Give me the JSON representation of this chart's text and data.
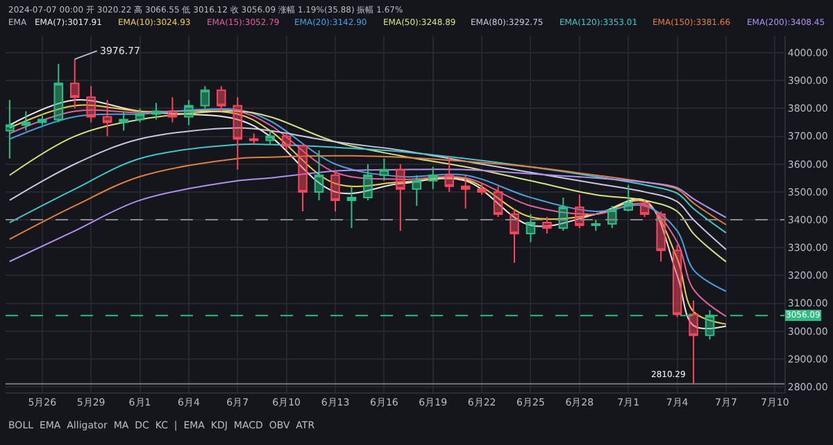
{
  "chart_data": {
    "type": "candlestick",
    "title": "2024-07-07 00:00 开 3020.22 高 3066.55 低 3016.12 收 3056.09 涨幅 1.19%(35.88) 振幅 1.67%",
    "legend_title": "EMA",
    "x": [
      "2024-05-24",
      "2024-05-25",
      "2024-05-26",
      "2024-05-27",
      "2024-05-28",
      "2024-05-29",
      "2024-05-30",
      "2024-05-31",
      "2024-06-01",
      "2024-06-02",
      "2024-06-03",
      "2024-06-04",
      "2024-06-05",
      "2024-06-06",
      "2024-06-07",
      "2024-06-08",
      "2024-06-09",
      "2024-06-10",
      "2024-06-11",
      "2024-06-12",
      "2024-06-13",
      "2024-06-14",
      "2024-06-15",
      "2024-06-16",
      "2024-06-17",
      "2024-06-18",
      "2024-06-19",
      "2024-06-20",
      "2024-06-21",
      "2024-06-22",
      "2024-06-23",
      "2024-06-24",
      "2024-06-25",
      "2024-06-26",
      "2024-06-27",
      "2024-06-28",
      "2024-06-29",
      "2024-06-30",
      "2024-07-01",
      "2024-07-02",
      "2024-07-03",
      "2024-07-04",
      "2024-07-05",
      "2024-07-06"
    ],
    "ohlc": [
      [
        3720,
        3830,
        3620,
        3740
      ],
      [
        3740,
        3790,
        3720,
        3750
      ],
      [
        3750,
        3780,
        3740,
        3760
      ],
      [
        3760,
        3960,
        3750,
        3890
      ],
      [
        3890,
        3976.77,
        3800,
        3840
      ],
      [
        3840,
        3880,
        3750,
        3770
      ],
      [
        3770,
        3830,
        3700,
        3750
      ],
      [
        3750,
        3790,
        3720,
        3760
      ],
      [
        3760,
        3800,
        3750,
        3780
      ],
      [
        3780,
        3820,
        3760,
        3790
      ],
      [
        3790,
        3840,
        3750,
        3770
      ],
      [
        3770,
        3830,
        3740,
        3810
      ],
      [
        3810,
        3880,
        3800,
        3865
      ],
      [
        3865,
        3880,
        3790,
        3810
      ],
      [
        3810,
        3840,
        3580,
        3690
      ],
      [
        3690,
        3710,
        3670,
        3685
      ],
      [
        3685,
        3720,
        3670,
        3700
      ],
      [
        3700,
        3710,
        3650,
        3665
      ],
      [
        3665,
        3670,
        3430,
        3500
      ],
      [
        3500,
        3650,
        3470,
        3560
      ],
      [
        3560,
        3580,
        3430,
        3470
      ],
      [
        3470,
        3520,
        3370,
        3480
      ],
      [
        3480,
        3600,
        3470,
        3560
      ],
      [
        3560,
        3620,
        3540,
        3580
      ],
      [
        3580,
        3600,
        3360,
        3510
      ],
      [
        3510,
        3560,
        3450,
        3540
      ],
      [
        3540,
        3590,
        3510,
        3560
      ],
      [
        3560,
        3630,
        3500,
        3520
      ],
      [
        3520,
        3560,
        3440,
        3510
      ],
      [
        3510,
        3530,
        3490,
        3500
      ],
      [
        3500,
        3520,
        3410,
        3420
      ],
      [
        3420,
        3440,
        3245,
        3350
      ],
      [
        3350,
        3420,
        3320,
        3390
      ],
      [
        3390,
        3410,
        3350,
        3370
      ],
      [
        3370,
        3480,
        3360,
        3445
      ],
      [
        3445,
        3490,
        3370,
        3380
      ],
      [
        3380,
        3400,
        3360,
        3385
      ],
      [
        3385,
        3450,
        3370,
        3435
      ],
      [
        3435,
        3525,
        3430,
        3460
      ],
      [
        3460,
        3470,
        3410,
        3420
      ],
      [
        3420,
        3430,
        3250,
        3290
      ],
      [
        3290,
        3310,
        3050,
        3060
      ],
      [
        3060,
        3110,
        2810.29,
        2985
      ],
      [
        2985,
        3075,
        2970,
        3056.09
      ]
    ],
    "series": [
      {
        "name": "EMA(7):3017.91",
        "type": "line",
        "color": "#e8e8e8",
        "x": [
          "2024-05-24",
          "2024-05-28",
          "2024-06-01",
          "2024-06-07",
          "2024-06-09",
          "2024-06-13",
          "2024-06-17",
          "2024-06-21",
          "2024-06-25",
          "2024-06-29",
          "2024-07-02",
          "2024-07-04",
          "2024-07-05",
          "2024-07-07"
        ],
        "values": [
          3740,
          3830,
          3790,
          3760,
          3700,
          3500,
          3530,
          3540,
          3380,
          3420,
          3470,
          3200,
          3020,
          3018
        ]
      },
      {
        "name": "EMA(10):3024.93",
        "type": "line",
        "color": "#f0d040",
        "x": [
          "2024-05-24",
          "2024-05-28",
          "2024-06-01",
          "2024-06-07",
          "2024-06-09",
          "2024-06-13",
          "2024-06-17",
          "2024-06-21",
          "2024-06-25",
          "2024-06-29",
          "2024-07-02",
          "2024-07-04",
          "2024-07-05",
          "2024-07-07"
        ],
        "values": [
          3730,
          3810,
          3790,
          3780,
          3720,
          3530,
          3535,
          3545,
          3410,
          3420,
          3465,
          3260,
          3070,
          3025
        ]
      },
      {
        "name": "EMA(15):3052.79",
        "type": "line",
        "color": "#e060a0",
        "x": [
          "2024-05-24",
          "2024-05-28",
          "2024-06-01",
          "2024-06-07",
          "2024-06-09",
          "2024-06-13",
          "2024-06-17",
          "2024-06-21",
          "2024-06-25",
          "2024-06-29",
          "2024-07-02",
          "2024-07-04",
          "2024-07-05",
          "2024-07-07"
        ],
        "values": [
          3710,
          3790,
          3785,
          3790,
          3740,
          3570,
          3545,
          3550,
          3450,
          3420,
          3455,
          3320,
          3150,
          3053
        ]
      },
      {
        "name": "EMA(20):3142.90",
        "type": "line",
        "color": "#4aa0e0",
        "x": [
          "2024-05-24",
          "2024-05-28",
          "2024-06-01",
          "2024-06-07",
          "2024-06-09",
          "2024-06-13",
          "2024-06-17",
          "2024-06-21",
          "2024-06-25",
          "2024-06-29",
          "2024-07-02",
          "2024-07-04",
          "2024-07-05",
          "2024-07-07"
        ],
        "values": [
          3690,
          3770,
          3780,
          3795,
          3755,
          3600,
          3555,
          3560,
          3480,
          3430,
          3450,
          3360,
          3220,
          3143
        ]
      },
      {
        "name": "EMA(50):3248.89",
        "type": "line",
        "color": "#d8e080",
        "x": [
          "2024-05-24",
          "2024-05-28",
          "2024-06-01",
          "2024-06-07",
          "2024-06-09",
          "2024-06-13",
          "2024-06-17",
          "2024-06-21",
          "2024-06-25",
          "2024-06-29",
          "2024-07-02",
          "2024-07-04",
          "2024-07-05",
          "2024-07-07"
        ],
        "values": [
          3560,
          3700,
          3760,
          3790,
          3770,
          3680,
          3630,
          3590,
          3540,
          3490,
          3470,
          3430,
          3350,
          3249
        ]
      },
      {
        "name": "EMA(80):3292.75",
        "type": "line",
        "color": "#c8c8e0",
        "x": [
          "2024-05-24",
          "2024-05-28",
          "2024-06-01",
          "2024-06-07",
          "2024-06-09",
          "2024-06-13",
          "2024-06-17",
          "2024-06-21",
          "2024-06-25",
          "2024-06-29",
          "2024-07-02",
          "2024-07-04",
          "2024-07-05",
          "2024-07-07"
        ],
        "values": [
          3470,
          3600,
          3690,
          3730,
          3720,
          3680,
          3650,
          3610,
          3570,
          3530,
          3500,
          3465,
          3400,
          3293
        ]
      },
      {
        "name": "EMA(120):3353.01",
        "type": "line",
        "color": "#40c8d0",
        "x": [
          "2024-05-24",
          "2024-05-28",
          "2024-06-01",
          "2024-06-07",
          "2024-06-09",
          "2024-06-13",
          "2024-06-17",
          "2024-06-21",
          "2024-06-25",
          "2024-06-29",
          "2024-07-02",
          "2024-07-04",
          "2024-07-05",
          "2024-07-07"
        ],
        "values": [
          3390,
          3510,
          3620,
          3670,
          3670,
          3660,
          3645,
          3620,
          3590,
          3555,
          3525,
          3495,
          3440,
          3353
        ]
      },
      {
        "name": "EMA(150):3381.66",
        "type": "line",
        "color": "#e08040",
        "x": [
          "2024-05-24",
          "2024-05-28",
          "2024-06-01",
          "2024-06-07",
          "2024-06-09",
          "2024-06-13",
          "2024-06-17",
          "2024-06-21",
          "2024-06-25",
          "2024-06-29",
          "2024-07-02",
          "2024-07-04",
          "2024-07-05",
          "2024-07-07"
        ],
        "values": [
          3330,
          3450,
          3555,
          3620,
          3625,
          3630,
          3625,
          3610,
          3590,
          3560,
          3535,
          3510,
          3460,
          3382
        ]
      },
      {
        "name": "EMA(200):3408.45",
        "type": "line",
        "color": "#b090f0",
        "x": [
          "2024-05-24",
          "2024-05-28",
          "2024-06-01",
          "2024-06-07",
          "2024-06-09",
          "2024-06-13",
          "2024-06-17",
          "2024-06-21",
          "2024-06-25",
          "2024-06-29",
          "2024-07-02",
          "2024-07-04",
          "2024-07-05",
          "2024-07-07"
        ],
        "values": [
          3250,
          3360,
          3470,
          3540,
          3550,
          3575,
          3580,
          3580,
          3565,
          3550,
          3535,
          3515,
          3475,
          3408
        ]
      }
    ],
    "xlim": [
      "2024-05-23T18:00",
      "2024-07-10T14:00"
    ],
    "xticks": [
      {
        "value": "2024-05-26",
        "label": "5月26"
      },
      {
        "value": "2024-05-29",
        "label": "5月29"
      },
      {
        "value": "2024-06-01",
        "label": "6月1"
      },
      {
        "value": "2024-06-04",
        "label": "6月4"
      },
      {
        "value": "2024-06-07",
        "label": "6月7"
      },
      {
        "value": "2024-06-10",
        "label": "6月10"
      },
      {
        "value": "2024-06-13",
        "label": "6月13"
      },
      {
        "value": "2024-06-16",
        "label": "6月16"
      },
      {
        "value": "2024-06-19",
        "label": "6月19"
      },
      {
        "value": "2024-06-22",
        "label": "6月22"
      },
      {
        "value": "2024-06-25",
        "label": "6月25"
      },
      {
        "value": "2024-06-28",
        "label": "6月28"
      },
      {
        "value": "2024-07-01",
        "label": "7月1"
      },
      {
        "value": "2024-07-04",
        "label": "7月4"
      },
      {
        "value": "2024-07-07",
        "label": "7月7"
      },
      {
        "value": "2024-07-10",
        "label": "7月10"
      }
    ],
    "ylim": [
      2780,
      4060
    ],
    "yticks": [
      {
        "value": 2800,
        "label": "2800.00"
      },
      {
        "value": 2900,
        "label": "2900.00"
      },
      {
        "value": 3000,
        "label": "3000.00"
      },
      {
        "value": 3100,
        "label": "3100.00"
      },
      {
        "value": 3200,
        "label": "3200.00"
      },
      {
        "value": 3300,
        "label": "3300.00"
      },
      {
        "value": 3400,
        "label": "3400.00"
      },
      {
        "value": 3500,
        "label": "3500.00"
      },
      {
        "value": 3600,
        "label": "3600.00"
      },
      {
        "value": 3700,
        "label": "3700.00"
      },
      {
        "value": 3800,
        "label": "3800.00"
      },
      {
        "value": 3900,
        "label": "3900.00"
      },
      {
        "value": 4000,
        "label": "4000.00"
      }
    ],
    "grid": true,
    "legend": "top left",
    "ref_lines": [
      {
        "axis": "y",
        "value": 3400,
        "line_style": "dashed",
        "color": "#8a8a8a"
      },
      {
        "axis": "y",
        "value": 3056.09,
        "label": "3056.09",
        "line_style": "dashed",
        "color": "#2ebd85"
      },
      {
        "axis": "y",
        "value": 2810.29,
        "label": "2810.29",
        "line_style": "solid",
        "color": "#777777"
      }
    ],
    "annotations": [
      {
        "text": "3976.77",
        "x": "2024-05-28",
        "y": 3976.77
      },
      "BOLL  EMA  Alligator  MA  DC  KC  |  EMA  KDJ  MACD  OBV  ATR"
    ]
  }
}
